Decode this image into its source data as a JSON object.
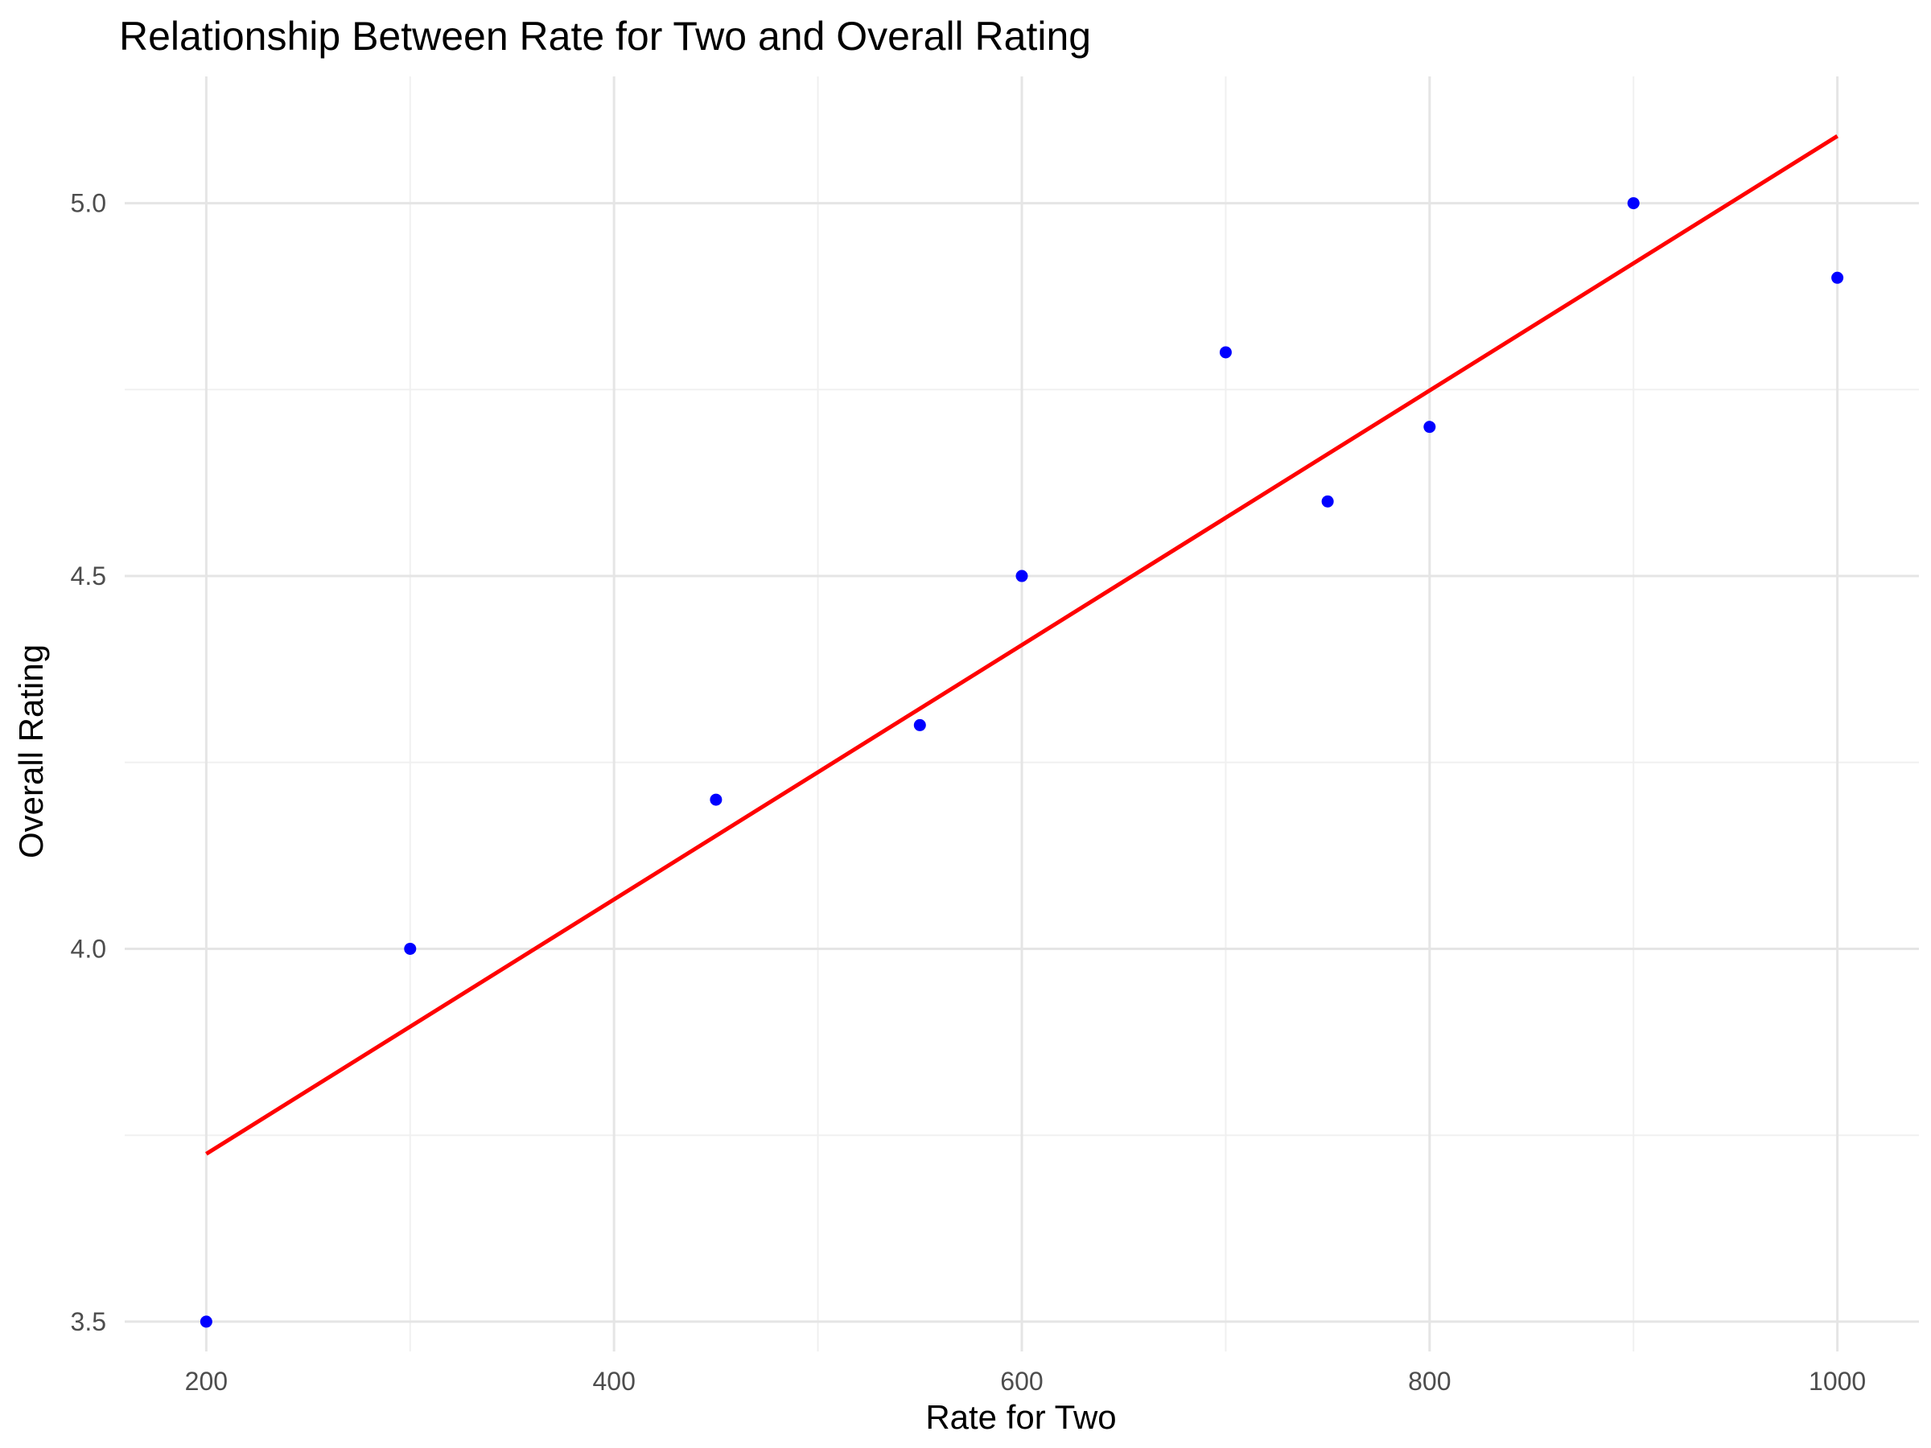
{
  "chart_data": {
    "type": "scatter",
    "title": "Relationship Between Rate for Two and Overall Rating",
    "xlabel": "Rate for Two",
    "ylabel": "Overall Rating",
    "xlim": [
      160,
      1040
    ],
    "ylim": [
      3.46,
      5.17
    ],
    "x_ticks": [
      200,
      400,
      600,
      800,
      1000
    ],
    "x_tick_labels": [
      "200",
      "400",
      "600",
      "800",
      "1000"
    ],
    "x_minor_ticks": [
      300,
      500,
      700,
      900
    ],
    "y_ticks": [
      3.5,
      4.0,
      4.5,
      5.0
    ],
    "y_tick_labels": [
      "3.5",
      "4.0",
      "4.5",
      "5.0"
    ],
    "y_minor_ticks": [
      3.75,
      4.25,
      4.75
    ],
    "grid": true,
    "points": {
      "x": [
        200,
        300,
        450,
        550,
        600,
        700,
        750,
        800,
        900,
        1000
      ],
      "y": [
        3.5,
        4.0,
        4.2,
        4.3,
        4.5,
        4.8,
        4.6,
        4.7,
        5.0,
        4.9
      ],
      "color": "#0000ff"
    },
    "trend_line": {
      "x": [
        200,
        1000
      ],
      "y": [
        3.725,
        5.09
      ],
      "color": "#ff0000"
    },
    "grid_major_color": "#e5e5e5",
    "grid_minor_color": "#f0f0f0"
  }
}
